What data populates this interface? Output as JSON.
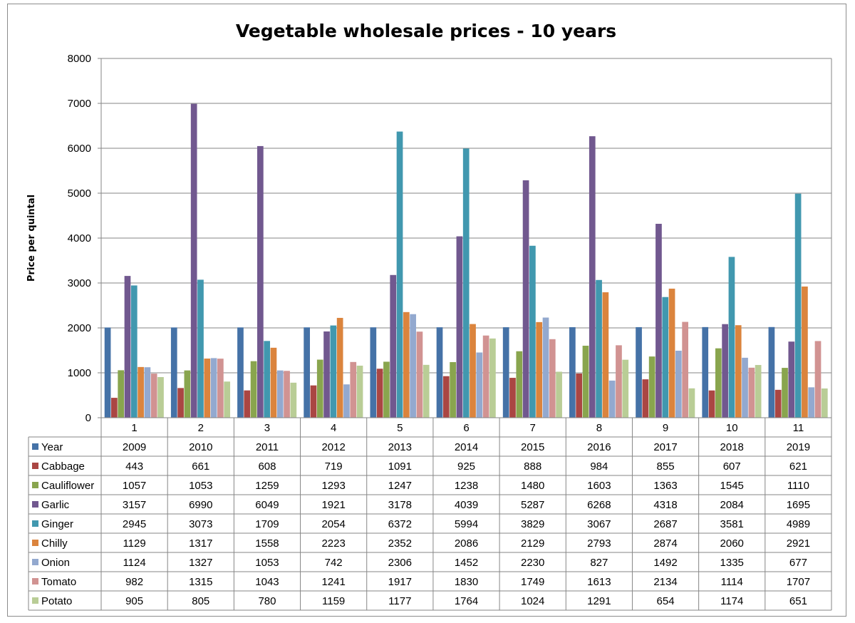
{
  "chart_data": {
    "type": "bar",
    "title": "Vegetable wholesale prices - 10 years",
    "xlabel": "",
    "ylabel": "Price per quintal",
    "ylim": [
      0,
      8000
    ],
    "yticks": [
      "0",
      "1000",
      "2000",
      "3000",
      "4000",
      "5000",
      "6000",
      "7000",
      "8000"
    ],
    "grid": true,
    "legend": "data-table",
    "categories": [
      "1",
      "2",
      "3",
      "4",
      "5",
      "6",
      "7",
      "8",
      "9",
      "10",
      "11"
    ],
    "series": [
      {
        "name": "Year",
        "color": "#4572A7",
        "values": [
          2009,
          2010,
          2011,
          2012,
          2013,
          2014,
          2015,
          2016,
          2017,
          2018,
          2019
        ]
      },
      {
        "name": "Cabbage",
        "color": "#AA4643",
        "values": [
          443,
          661,
          608,
          719,
          1091,
          925,
          888,
          984,
          855,
          607,
          621
        ]
      },
      {
        "name": "Cauliflower",
        "color": "#89A54E",
        "values": [
          1057,
          1053,
          1259,
          1293,
          1247,
          1238,
          1480,
          1603,
          1363,
          1545,
          1110
        ]
      },
      {
        "name": "Garlic",
        "color": "#71588F",
        "values": [
          3157,
          6990,
          6049,
          1921,
          3178,
          4039,
          5287,
          6268,
          4318,
          2084,
          1695
        ]
      },
      {
        "name": "Ginger",
        "color": "#4198AF",
        "values": [
          2945,
          3073,
          1709,
          2054,
          6372,
          5994,
          3829,
          3067,
          2687,
          3581,
          4989
        ]
      },
      {
        "name": "Chilly",
        "color": "#DB843D",
        "values": [
          1129,
          1317,
          1558,
          2223,
          2352,
          2086,
          2129,
          2793,
          2874,
          2060,
          2921
        ]
      },
      {
        "name": "Onion",
        "color": "#93A9CF",
        "values": [
          1124,
          1327,
          1053,
          742,
          2306,
          1452,
          2230,
          827,
          1492,
          1335,
          677
        ]
      },
      {
        "name": "Tomato",
        "color": "#D19392",
        "values": [
          982,
          1315,
          1043,
          1241,
          1917,
          1830,
          1749,
          1613,
          2134,
          1114,
          1707
        ]
      },
      {
        "name": "Potato",
        "color": "#B9CD96",
        "values": [
          905,
          805,
          780,
          1159,
          1177,
          1764,
          1024,
          1291,
          654,
          1174,
          651
        ]
      }
    ]
  }
}
